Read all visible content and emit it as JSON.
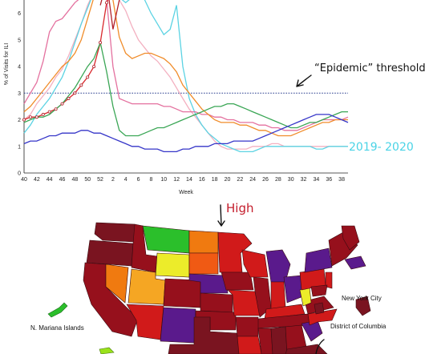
{
  "chart_data": {
    "type": "line",
    "title": "",
    "xlabel": "Week",
    "ylabel": "% of Visits for ILI",
    "x": [
      "40",
      "41",
      "42",
      "43",
      "44",
      "45",
      "46",
      "47",
      "48",
      "49",
      "50",
      "51",
      "52",
      "1",
      "2",
      "3",
      "4",
      "5",
      "6",
      "7",
      "8",
      "9",
      "10",
      "11",
      "12",
      "13",
      "14",
      "15",
      "16",
      "17",
      "18",
      "19",
      "20",
      "21",
      "22",
      "23",
      "24",
      "25",
      "26",
      "27",
      "28",
      "29",
      "30",
      "31",
      "32",
      "33",
      "34",
      "35",
      "36",
      "37",
      "38",
      "39"
    ],
    "xticks": [
      "40",
      "42",
      "44",
      "46",
      "48",
      "50",
      "52",
      "2",
      "4",
      "6",
      "8",
      "10",
      "12",
      "14",
      "16",
      "18",
      "20",
      "22",
      "24",
      "26",
      "28",
      "30",
      "32",
      "34",
      "36",
      "38"
    ],
    "ylim": [
      0,
      6.5
    ],
    "yticks": [
      0,
      1,
      2,
      3,
      4,
      5,
      6
    ],
    "grid": false,
    "threshold": 3.0,
    "series": [
      {
        "name": "2019- 2020",
        "color": "#f3b0c0",
        "values": [
          2.0,
          2.2,
          2.6,
          2.9,
          3.2,
          3.6,
          3.9,
          4.4,
          5.0,
          5.6,
          6.3,
          6.8,
          7.0,
          7.0,
          6.8,
          6.5,
          6.1,
          5.5,
          5.0,
          4.7,
          4.4,
          4.2,
          3.9,
          3.6,
          3.2,
          2.8,
          2.4,
          2.1,
          1.8,
          1.5,
          1.2,
          1.0,
          0.9,
          0.9,
          0.9,
          0.9,
          1.0,
          1.0,
          1.0,
          1.1,
          1.1,
          1.0,
          1.0,
          1.0,
          1.0,
          1.0,
          1.0,
          1.0,
          1.0,
          1.0,
          1.0,
          1.0
        ],
        "markers": true
      },
      {
        "name": "",
        "color": "#5cd3e3",
        "values": [
          1.5,
          1.8,
          2.2,
          2.5,
          2.8,
          3.2,
          3.6,
          4.2,
          4.9,
          5.6,
          6.2,
          6.8,
          7.2,
          7.4,
          7.0,
          6.6,
          6.4,
          6.6,
          6.8,
          6.5,
          6.0,
          5.6,
          5.2,
          5.4,
          6.3,
          4.0,
          2.8,
          2.2,
          1.8,
          1.5,
          1.3,
          1.1,
          1.0,
          0.9,
          0.8,
          0.8,
          0.8,
          0.9,
          1.0,
          1.0,
          1.0,
          1.0,
          1.0,
          1.0,
          1.0,
          1.0,
          0.9,
          0.9,
          1.0,
          1.0,
          1.0,
          1.0
        ]
      },
      {
        "name": "",
        "color": "#e4719f",
        "values": [
          2.6,
          3.0,
          3.4,
          4.2,
          5.3,
          5.7,
          5.8,
          6.1,
          6.4,
          6.6,
          6.8,
          6.9,
          7.0,
          6.5,
          4.0,
          2.8,
          2.7,
          2.6,
          2.6,
          2.6,
          2.6,
          2.6,
          2.5,
          2.5,
          2.4,
          2.3,
          2.3,
          2.3,
          2.2,
          2.2,
          2.1,
          2.1,
          2.0,
          2.0,
          1.9,
          1.9,
          1.9,
          1.8,
          1.8,
          1.7,
          1.7,
          1.6,
          1.6,
          1.6,
          1.7,
          1.8,
          1.9,
          2.0,
          2.0,
          2.0,
          2.0,
          2.1
        ]
      },
      {
        "name": "",
        "color": "#f08c2a",
        "values": [
          2.3,
          2.5,
          2.8,
          3.1,
          3.4,
          3.7,
          4.0,
          4.2,
          4.5,
          5.0,
          5.8,
          6.6,
          7.2,
          7.3,
          6.5,
          5.1,
          4.5,
          4.3,
          4.4,
          4.5,
          4.5,
          4.4,
          4.3,
          4.1,
          3.8,
          3.3,
          3.0,
          2.7,
          2.4,
          2.2,
          2.0,
          1.9,
          1.9,
          1.9,
          1.8,
          1.8,
          1.7,
          1.6,
          1.6,
          1.5,
          1.4,
          1.4,
          1.4,
          1.5,
          1.6,
          1.7,
          1.8,
          1.9,
          1.9,
          2.0,
          2.0,
          2.0
        ]
      },
      {
        "name": "",
        "color": "#d8282c",
        "values": [
          2.0,
          2.1,
          2.1,
          2.2,
          2.3,
          2.4,
          2.6,
          2.8,
          3.0,
          3.3,
          3.6,
          4.0,
          4.9,
          6.4,
          6.9,
          7.0,
          null,
          null,
          null,
          null,
          null,
          null,
          null,
          null,
          null,
          null,
          null,
          null,
          null,
          null,
          null,
          null,
          null,
          null,
          null,
          null,
          null,
          null,
          null,
          null,
          null,
          null,
          null,
          null,
          null,
          null,
          null,
          null,
          null,
          null,
          null,
          null
        ]
      },
      {
        "name": "",
        "color": "#b2202a",
        "values": [
          null,
          null,
          null,
          null,
          null,
          null,
          null,
          null,
          null,
          null,
          null,
          null,
          6.3,
          7.2,
          5.4,
          6.5,
          null,
          null,
          null,
          null,
          null,
          null,
          null,
          null,
          null,
          null,
          null,
          null,
          null,
          null,
          null,
          null,
          null,
          null,
          null,
          null,
          null,
          null,
          null,
          null,
          null,
          null,
          null,
          null,
          null,
          null,
          null,
          null,
          null,
          null,
          null,
          null
        ]
      },
      {
        "name": "",
        "color": "#3aa655",
        "values": [
          1.9,
          2.0,
          2.1,
          2.1,
          2.2,
          2.4,
          2.6,
          2.9,
          3.2,
          3.6,
          4.0,
          4.3,
          4.9,
          3.8,
          2.5,
          1.6,
          1.4,
          1.4,
          1.4,
          1.5,
          1.6,
          1.7,
          1.7,
          1.8,
          1.9,
          2.0,
          2.1,
          2.2,
          2.3,
          2.4,
          2.5,
          2.5,
          2.6,
          2.6,
          2.5,
          2.4,
          2.3,
          2.2,
          2.1,
          2.0,
          1.9,
          1.8,
          1.7,
          1.7,
          1.8,
          1.9,
          1.9,
          2.0,
          2.1,
          2.2,
          2.3,
          2.3
        ]
      },
      {
        "name": "",
        "color": "#3535c8",
        "values": [
          1.1,
          1.2,
          1.2,
          1.3,
          1.4,
          1.4,
          1.5,
          1.5,
          1.5,
          1.6,
          1.6,
          1.5,
          1.5,
          1.4,
          1.3,
          1.2,
          1.1,
          1.0,
          1.0,
          0.9,
          0.9,
          0.9,
          0.8,
          0.8,
          0.8,
          0.9,
          0.9,
          1.0,
          1.0,
          1.0,
          1.1,
          1.1,
          1.1,
          1.2,
          1.2,
          1.2,
          1.2,
          1.3,
          1.4,
          1.5,
          1.6,
          1.7,
          1.8,
          1.9,
          2.0,
          2.1,
          2.2,
          2.2,
          2.2,
          2.1,
          2.0,
          1.9
        ]
      }
    ]
  },
  "annotations": {
    "threshold_label": "“Epidemic” threshold",
    "season_label": "2019- 2020"
  },
  "map": {
    "high_label": "High",
    "labels": {
      "mariana": "N. Mariana Islands",
      "nyc": "New York City",
      "dc": "District of Columbia"
    },
    "colors": {
      "maroon": "#7a1420",
      "darkred": "#96101c",
      "red": "#d11a1a",
      "orange": "#f07a10",
      "orange_light": "#f5a623",
      "yellow": "#ecec2a",
      "green": "#2bbf2b",
      "lime": "#9ae21a",
      "purple": "#5a1a8c"
    }
  }
}
